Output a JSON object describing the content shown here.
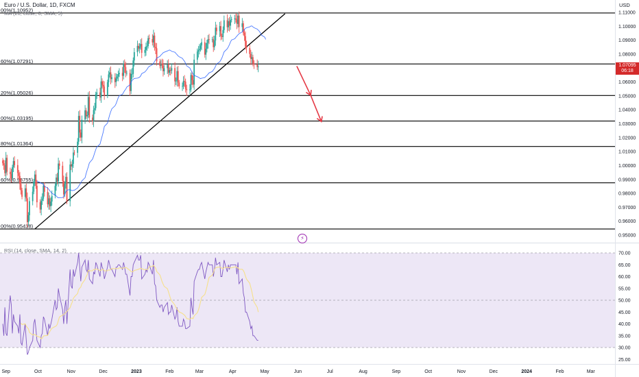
{
  "header": {
    "title": "Euro / U.S. Dollar, 1D, FXCM",
    "indicator": "MA (20, close, 0, SMA, 5)",
    "currency": "USD"
  },
  "price_badge": {
    "price": "1.07095",
    "countdown": "06:18"
  },
  "colors": {
    "up": "#26a69a",
    "down": "#ef5350",
    "ma": "#2962ff",
    "rsi": "#7e57c2",
    "rsi_ma": "#f6e08a",
    "rsi_band": "#ede7f6",
    "arrow": "#e53945",
    "fib_line": "#000000"
  },
  "icons": {
    "lightning": "lightning-bolt-icon"
  },
  "chart_data": [
    {
      "type": "candlestick",
      "series_name": "EURUSD",
      "ylim": [
        0.945,
        1.112
      ],
      "y_ticks": [
        "1.11000",
        "1.10000",
        "1.09000",
        "1.08000",
        "1.07000",
        "1.06000",
        "1.05000",
        "1.04000",
        "1.03000",
        "1.02000",
        "1.01000",
        "1.00000",
        "0.99000",
        "0.98000",
        "0.97000",
        "0.96000",
        "0.95000"
      ],
      "x_ticks": [
        "Sep",
        "Oct",
        "Nov",
        "Dec",
        "2023",
        "Feb",
        "Mar",
        "Apr",
        "May",
        "Jun",
        "Jul",
        "Aug",
        "Sep",
        "Oct",
        "Nov",
        "Dec",
        "2024",
        "Feb",
        "Mar"
      ],
      "fib_levels": [
        {
          "label": "00%(1.10952)",
          "value": 1.10952
        },
        {
          "label": "60%(1.07291)",
          "value": 1.07291
        },
        {
          "label": "20%(1.05026)",
          "value": 1.05026
        },
        {
          "label": "00%(1.03195)",
          "value": 1.03195
        },
        {
          "label": "80%(1.01364)",
          "value": 1.01364
        },
        {
          "label": "60%(0.98755)",
          "value": 0.98755
        },
        {
          "label": "00%(0.95438)",
          "value": 0.95438
        }
      ],
      "trendline": {
        "from": [
          "2022-09-28",
          0.9544
        ],
        "to": [
          "2023-05-20",
          1.109
        ]
      },
      "projection_arrows": [
        {
          "from": [
            "2023-05-31",
            1.0714
          ],
          "to": [
            "2023-06-13",
            1.0504
          ]
        },
        {
          "from": [
            "2023-06-13",
            1.0504
          ],
          "to": [
            "2023-06-23",
            1.0315
          ]
        }
      ],
      "last_price": 1.07095,
      "close_series": {
        "start": "2022-08-29",
        "closes": [
          1.0016,
          1.0003,
          0.9945,
          1.0055,
          0.9955,
          0.9938,
          0.9908,
          0.9987,
          1.0032,
          1.0003,
          0.9946,
          0.9925,
          0.9868,
          0.9822,
          0.9775,
          0.9836,
          0.9764,
          0.9593,
          0.9643,
          0.9744,
          0.9812,
          0.9886,
          0.9935,
          0.9854,
          0.9736,
          0.9684,
          0.9747,
          0.9762,
          0.9854,
          0.9811,
          0.9721,
          0.9764,
          0.9708,
          0.9741,
          0.9782,
          0.9853,
          0.9913,
          0.9886,
          1.0014,
          0.9998,
          0.9889,
          0.9792,
          0.9868,
          0.9918,
          0.9744,
          1.0007,
          0.9993,
          1.0012,
          1.0093,
          1.0091,
          1.0171,
          1.0356,
          1.0237,
          1.0201,
          1.0329,
          1.0396,
          1.0353,
          1.0362,
          1.0492,
          1.0344,
          1.0318,
          1.0399,
          1.0412,
          1.0512,
          1.0525,
          1.0488,
          1.0604,
          1.0579,
          1.0567,
          1.0502,
          1.0598,
          1.0654,
          1.0669,
          1.0621,
          1.0633,
          1.0599,
          1.0624,
          1.0639,
          1.0656,
          1.0665,
          1.0644,
          1.0732,
          1.0707,
          1.0663,
          1.0664,
          1.0535,
          1.0657,
          1.0658,
          1.0754,
          1.0814,
          1.0859,
          1.084,
          1.0853,
          1.0873,
          1.0809,
          1.083,
          1.0853,
          1.0858,
          1.0915,
          1.0908,
          1.0884,
          1.0933,
          1.0851,
          1.0842,
          1.0748,
          1.0715,
          1.0733,
          1.072,
          1.0677,
          1.0699,
          1.0725,
          1.0666,
          1.0686,
          1.0681,
          1.07,
          1.0604,
          1.061,
          1.0678,
          1.0596,
          1.0569,
          1.057,
          1.0607,
          1.0602,
          1.055,
          1.0541,
          1.0546,
          1.065,
          1.0613,
          1.0581,
          1.076,
          1.0818,
          1.0828,
          1.0836,
          1.0862,
          1.0885,
          1.0796,
          1.0838,
          1.0881,
          1.0907,
          1.0902,
          1.0906,
          1.085,
          1.0898,
          1.099,
          1.0965,
          1.1001,
          1.0929,
          1.0923,
          1.0973,
          1.1043,
          1.0993,
          1.1036,
          1.1004,
          1.1046,
          1.105,
          1.1056,
          1.1048,
          1.1017,
          1.1076,
          1.0995,
          1.1021,
          1.0953,
          1.0929,
          1.0854,
          1.0844,
          1.0801,
          1.0765,
          1.0778,
          1.073,
          1.0727,
          1.0708,
          1.071
        ]
      }
    },
    {
      "type": "line",
      "title": "RSI (14, close, SMA, 14, 2)",
      "ylim": [
        23.5,
        71.5
      ],
      "y_ticks": [
        "70.00",
        "65.00",
        "60.00",
        "55.00",
        "50.00",
        "45.00",
        "40.00",
        "35.00",
        "30.00",
        "25.00"
      ],
      "bands": [
        30,
        50,
        70
      ],
      "series": [
        {
          "values": [
            40,
            35,
            47,
            36,
            35,
            52,
            48,
            36,
            44,
            41,
            39,
            36,
            44,
            32,
            31,
            40,
            33,
            27,
            28,
            30,
            33,
            40,
            42,
            38,
            33,
            30,
            35,
            36,
            43,
            42,
            35,
            40,
            38,
            40,
            42,
            50,
            46,
            47,
            55,
            52,
            46,
            40,
            47,
            50,
            40,
            63,
            56,
            55,
            63,
            60,
            66,
            70,
            64,
            58,
            64,
            67,
            63,
            62,
            67,
            59,
            57,
            62,
            61,
            66,
            65,
            60,
            66,
            64,
            63,
            59,
            64,
            67,
            65,
            63,
            63,
            60,
            64,
            64,
            65,
            65,
            63,
            66,
            64,
            61,
            61,
            52,
            60,
            60,
            65,
            66,
            69,
            67,
            67,
            69,
            59,
            61,
            63,
            62,
            66,
            65,
            61,
            67,
            57,
            56,
            50,
            47,
            48,
            48,
            45,
            47,
            49,
            44,
            45,
            45,
            48,
            42,
            43,
            47,
            41,
            39,
            39,
            42,
            41,
            38,
            38,
            39,
            51,
            47,
            44,
            58,
            62,
            63,
            63,
            65,
            66,
            59,
            62,
            64,
            66,
            65,
            65,
            60,
            63,
            68,
            65,
            66,
            60,
            60,
            63,
            67,
            62,
            65,
            63,
            65,
            65,
            65,
            65,
            61,
            66,
            57,
            59,
            53,
            51,
            45,
            45,
            41,
            38,
            39,
            35,
            35,
            33,
            33
          ]
        }
      ]
    }
  ]
}
